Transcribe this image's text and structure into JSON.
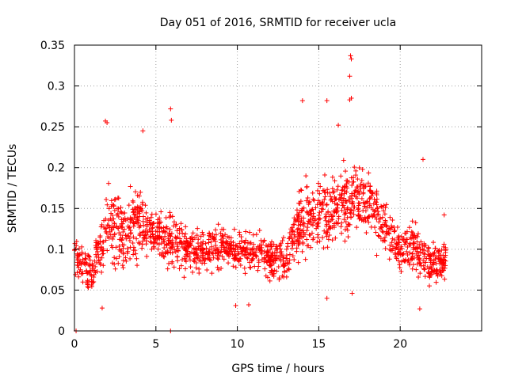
{
  "chart_data": {
    "type": "scatter",
    "title": "Day 051 of 2016, SRMTID for receiver ucla",
    "xlabel": "GPS time / hours",
    "ylabel": "SRMTID / TECUs",
    "xlim": [
      0,
      25
    ],
    "ylim": [
      0,
      0.35
    ],
    "xticks": [
      "0",
      "5",
      "10",
      "15",
      "20"
    ],
    "xtick_values": [
      0,
      5,
      10,
      15,
      20
    ],
    "yticks": [
      "0",
      "0.05",
      "0.1",
      "0.15",
      "0.2",
      "0.25",
      "0.3",
      "0.35"
    ],
    "ytick_values": [
      0,
      0.05,
      0.1,
      0.15,
      0.2,
      0.25,
      0.3,
      0.35
    ],
    "grid": true,
    "marker": "plus",
    "series_color": "#ff0000",
    "series": [
      {
        "name": "SRMTID",
        "approx_trend": {
          "x_hours": [
            0,
            1,
            2,
            3,
            4,
            5,
            6,
            7,
            8,
            9,
            10,
            11,
            12,
            13,
            14,
            15,
            16,
            17,
            18,
            19,
            20,
            21,
            22,
            22.8
          ],
          "median": [
            0.09,
            0.07,
            0.13,
            0.12,
            0.13,
            0.12,
            0.11,
            0.1,
            0.1,
            0.1,
            0.1,
            0.1,
            0.09,
            0.09,
            0.14,
            0.14,
            0.15,
            0.16,
            0.16,
            0.13,
            0.1,
            0.1,
            0.08,
            0.09
          ],
          "spread": [
            0.03,
            0.03,
            0.05,
            0.05,
            0.05,
            0.04,
            0.04,
            0.03,
            0.03,
            0.03,
            0.03,
            0.03,
            0.03,
            0.04,
            0.05,
            0.05,
            0.05,
            0.05,
            0.05,
            0.04,
            0.03,
            0.04,
            0.03,
            0.03
          ]
        },
        "notable_points": [
          {
            "x": 0.1,
            "y": 0.0
          },
          {
            "x": 5.9,
            "y": 0.0
          },
          {
            "x": 1.9,
            "y": 0.257
          },
          {
            "x": 2.0,
            "y": 0.255
          },
          {
            "x": 4.2,
            "y": 0.245
          },
          {
            "x": 5.9,
            "y": 0.272
          },
          {
            "x": 5.95,
            "y": 0.258
          },
          {
            "x": 14.0,
            "y": 0.282
          },
          {
            "x": 15.5,
            "y": 0.282
          },
          {
            "x": 16.95,
            "y": 0.337
          },
          {
            "x": 17.0,
            "y": 0.333
          },
          {
            "x": 16.9,
            "y": 0.312
          },
          {
            "x": 17.0,
            "y": 0.285
          },
          {
            "x": 16.9,
            "y": 0.283
          },
          {
            "x": 16.2,
            "y": 0.252
          },
          {
            "x": 21.4,
            "y": 0.21
          },
          {
            "x": 22.7,
            "y": 0.142
          },
          {
            "x": 10.7,
            "y": 0.032
          },
          {
            "x": 9.9,
            "y": 0.031
          },
          {
            "x": 1.7,
            "y": 0.028
          },
          {
            "x": 21.2,
            "y": 0.027
          },
          {
            "x": 17.05,
            "y": 0.046
          },
          {
            "x": 15.5,
            "y": 0.04
          }
        ]
      }
    ]
  }
}
